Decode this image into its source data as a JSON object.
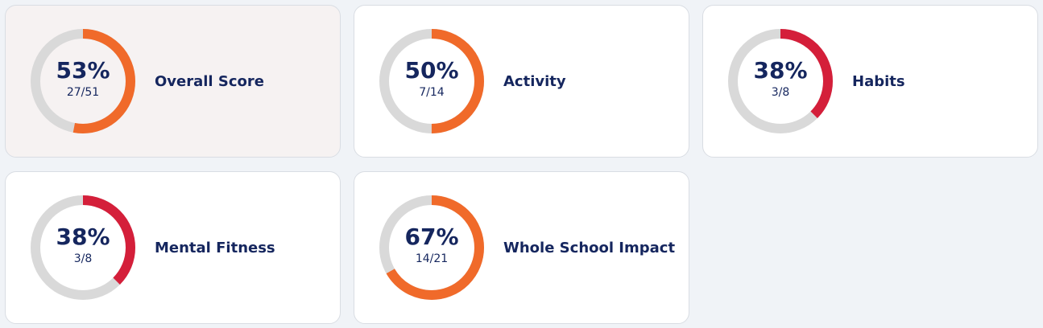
{
  "track_color": "#d9d9d9",
  "cards": [
    {
      "title": "Overall Score",
      "percent_label": "53%",
      "fraction_label": "27/51",
      "fraction": 0.53,
      "color": "#f06a2a",
      "selected": true
    },
    {
      "title": "Activity",
      "percent_label": "50%",
      "fraction_label": "7/14",
      "fraction": 0.5,
      "color": "#f06a2a",
      "selected": false
    },
    {
      "title": "Habits",
      "percent_label": "38%",
      "fraction_label": "3/8",
      "fraction": 0.375,
      "color": "#d41f3a",
      "selected": false
    },
    {
      "title": "Mental Fitness",
      "percent_label": "38%",
      "fraction_label": "3/8",
      "fraction": 0.375,
      "color": "#d41f3a",
      "selected": false
    },
    {
      "title": "Whole School Impact",
      "percent_label": "67%",
      "fraction_label": "14/21",
      "fraction": 0.667,
      "color": "#f06a2a",
      "selected": false
    }
  ]
}
